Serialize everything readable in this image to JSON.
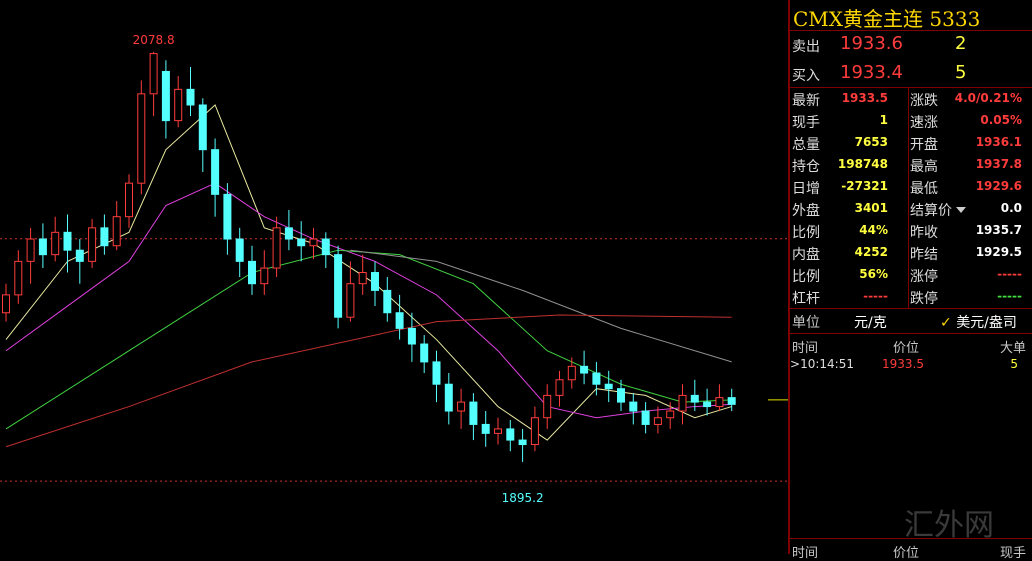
{
  "chart_data": {
    "type": "candlestick",
    "ylim": [
      1854,
      2102
    ],
    "up_color": "#ff3c3c",
    "down_color": "#54ffff",
    "open": [
      1962,
      1970,
      1985,
      1995,
      1988,
      1998,
      1990,
      1985,
      2000,
      1992,
      2005,
      2020,
      2060,
      2070,
      2048,
      2062,
      2055,
      2035,
      2015,
      1995,
      1985,
      1975,
      1982,
      2000,
      1995,
      1992,
      1995,
      1988,
      1960,
      1975,
      1980,
      1972,
      1962,
      1955,
      1948,
      1940,
      1930,
      1918,
      1922,
      1912,
      1908,
      1910,
      1905,
      1903,
      1915,
      1925,
      1932,
      1938,
      1935,
      1930,
      1928,
      1922,
      1918,
      1912,
      1915,
      1918,
      1925,
      1922,
      1920,
      1924
    ],
    "close": [
      1970,
      1985,
      1995,
      1988,
      1998,
      1990,
      1985,
      2000,
      1992,
      2005,
      2020,
      2060,
      2078,
      2048,
      2062,
      2055,
      2035,
      2015,
      1995,
      1985,
      1975,
      1982,
      2000,
      1995,
      1992,
      1995,
      1988,
      1960,
      1975,
      1980,
      1972,
      1962,
      1955,
      1948,
      1940,
      1930,
      1918,
      1922,
      1912,
      1908,
      1910,
      1905,
      1903,
      1915,
      1925,
      1932,
      1938,
      1935,
      1930,
      1928,
      1922,
      1918,
      1912,
      1915,
      1918,
      1925,
      1922,
      1920,
      1924,
      1921
    ],
    "high": [
      1975,
      1990,
      2000,
      2002,
      2005,
      2006,
      1995,
      2004,
      2006,
      2012,
      2024,
      2066,
      2078.8,
      2075,
      2068,
      2072,
      2058,
      2040,
      2020,
      2000,
      1992,
      1990,
      2005,
      2008,
      2003,
      2000,
      1998,
      1992,
      1985,
      1988,
      1985,
      1978,
      1970,
      1962,
      1952,
      1945,
      1935,
      1928,
      1926,
      1918,
      1915,
      1914,
      1910,
      1920,
      1930,
      1936,
      1942,
      1945,
      1940,
      1936,
      1932,
      1926,
      1922,
      1920,
      1922,
      1930,
      1932,
      1928,
      1930,
      1928
    ],
    "low": [
      1958,
      1966,
      1975,
      1982,
      1985,
      1980,
      1975,
      1982,
      1988,
      1990,
      2000,
      2015,
      2050,
      2040,
      2045,
      2050,
      2025,
      2005,
      1988,
      1978,
      1970,
      1970,
      1978,
      1990,
      1985,
      1986,
      1982,
      1955,
      1958,
      1970,
      1965,
      1958,
      1950,
      1940,
      1935,
      1922,
      1912,
      1910,
      1905,
      1902,
      1903,
      1900,
      1895.2,
      1900,
      1910,
      1920,
      1928,
      1930,
      1925,
      1922,
      1918,
      1912,
      1908,
      1908,
      1910,
      1912,
      1918,
      1916,
      1918,
      1918
    ],
    "high_label": 2078.8,
    "low_label": 1895.2,
    "ref_lines": [
      1995.1,
      1886.6
    ],
    "ref_color": "#c83232",
    "current_line": 1923,
    "current_color": "#e6e600",
    "ma": [
      {
        "color": "#e8e8a0",
        "x": [
          0,
          5,
          10,
          13,
          17,
          21,
          25,
          30,
          35,
          40,
          44,
          48,
          52,
          56,
          59
        ],
        "values": [
          1950,
          1985,
          1998,
          2035,
          2055,
          2000,
          1993,
          1975,
          1950,
          1920,
          1905,
          1928,
          1925,
          1915,
          1920
        ]
      },
      {
        "color": "#e040e0",
        "x": [
          0,
          5,
          10,
          13,
          17,
          21,
          25,
          30,
          35,
          40,
          44,
          48,
          52,
          56,
          59
        ],
        "values": [
          1945,
          1965,
          1985,
          2010,
          2020,
          2005,
          1995,
          1985,
          1970,
          1945,
          1920,
          1915,
          1918,
          1920,
          1921
        ]
      },
      {
        "color": "#40d040",
        "x": [
          0,
          10,
          20,
          27,
          32,
          38,
          44,
          50,
          55,
          59
        ],
        "values": [
          1910,
          1945,
          1980,
          1990,
          1988,
          1975,
          1945,
          1930,
          1922,
          1923
        ]
      },
      {
        "color": "#909090",
        "x": [
          28,
          35,
          42,
          50,
          59
        ],
        "values": [
          1990,
          1985,
          1972,
          1955,
          1940
        ]
      },
      {
        "color": "#c03030",
        "x": [
          0,
          10,
          20,
          30,
          35,
          45,
          59
        ],
        "values": [
          1902,
          1920,
          1940,
          1952,
          1958,
          1961,
          1960
        ]
      }
    ]
  },
  "quote": {
    "title": "CMX黄金主连",
    "code": "5333",
    "book": [
      {
        "label": "卖出",
        "price": "1933.6",
        "volume": "2"
      },
      {
        "label": "买入",
        "price": "1933.4",
        "volume": "5"
      }
    ],
    "stats": [
      {
        "l": "最新",
        "v": "1933.5",
        "vc": "#ff3c3c",
        "r": "涨跌",
        "rv": "4.0/0.21%",
        "rc": "#ff3c3c"
      },
      {
        "l": "现手",
        "v": "1",
        "vc": "#ffff40",
        "r": "速涨",
        "rv": "0.05%",
        "rc": "#ff3c3c"
      },
      {
        "l": "总量",
        "v": "7653",
        "vc": "#ffff40",
        "r": "开盘",
        "rv": "1936.1",
        "rc": "#ff3c3c"
      },
      {
        "l": "持仓",
        "v": "198748",
        "vc": "#ffff40",
        "r": "最高",
        "rv": "1937.8",
        "rc": "#ff3c3c"
      },
      {
        "l": "日增",
        "v": "-27321",
        "vc": "#ffff40",
        "r": "最低",
        "rv": "1929.6",
        "rc": "#ff3c3c"
      },
      {
        "l": "外盘",
        "v": "3401",
        "vc": "#ffff40",
        "r": "结算价",
        "rv": "0.0",
        "rc": "#ffffff"
      },
      {
        "l": "比例",
        "v": "44%",
        "vc": "#ffff40",
        "r": "昨收",
        "rv": "1935.7",
        "rc": "#ffffff"
      },
      {
        "l": "内盘",
        "v": "4252",
        "vc": "#ffff40",
        "r": "昨结",
        "rv": "1929.5",
        "rc": "#ffffff"
      },
      {
        "l": "比例",
        "v": "56%",
        "vc": "#ffff40",
        "r": "涨停",
        "rv": "-----",
        "rc": "#ff3c3c"
      },
      {
        "l": "杠杆",
        "v": "-----",
        "vc": "#ff3c3c",
        "r": "跌停",
        "rv": "-----",
        "rc": "#40e040"
      }
    ],
    "unit": {
      "label": "单位",
      "option1": "元/克",
      "option2": "美元/盎司"
    },
    "ticks_header": [
      "时间",
      "价位",
      "大单"
    ],
    "tick": {
      "time": "10:14:51",
      "price": "1933.5",
      "size": "5"
    },
    "watermark": "汇外网",
    "footer": [
      "时间",
      "价位",
      "现手"
    ]
  }
}
